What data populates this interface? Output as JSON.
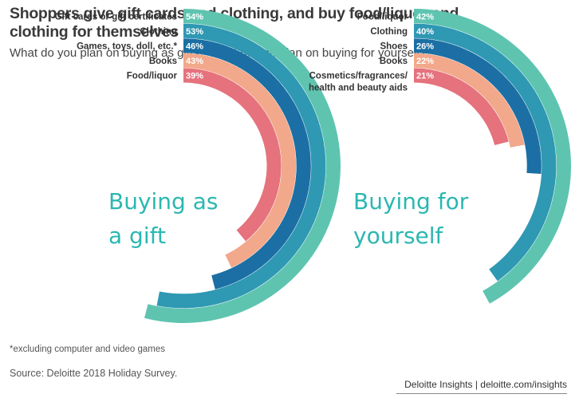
{
  "title": "Shoppers give gift cards and clothing, and buy food/liquor and clothing for themselves",
  "subtitle": "What do you plan on buying as gifts? What do you plan on buying for yourself?",
  "footnote": "*excluding computer and video games",
  "source": "Source: Deloitte 2018 Holiday Survey.",
  "brand": "Deloitte Insights | deloitte.com/insights",
  "colors": [
    "#5ec4b0",
    "#2f98b3",
    "#1b6fa4",
    "#f2a88a",
    "#e5727d"
  ],
  "center_color": "#2bb7b1",
  "chart_data": [
    {
      "type": "radial-bar",
      "center_label": [
        "Buying as",
        "a gift"
      ],
      "categories": [
        "Gift cards or gift certificates",
        "Clothing",
        "Games, toys, doll, etc.*",
        "Books",
        "Food/liquor"
      ],
      "values": [
        54,
        53,
        46,
        43,
        39
      ],
      "labels": [
        "54%",
        "53%",
        "46%",
        "43%",
        "39%"
      ]
    },
    {
      "type": "radial-bar",
      "center_label": [
        "Buying for",
        "yourself"
      ],
      "categories": [
        "Food/liquor",
        "Clothing",
        "Shoes",
        "Books",
        "Cosmetics/fragrances/\nhealth and beauty aids"
      ],
      "values": [
        42,
        40,
        26,
        22,
        21
      ],
      "labels": [
        "42%",
        "40%",
        "26%",
        "22%",
        "21%"
      ]
    }
  ]
}
